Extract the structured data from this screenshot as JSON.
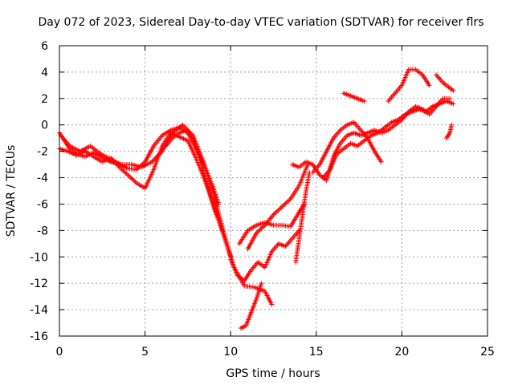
{
  "chart_data": {
    "type": "scatter",
    "title": "Day 072 of 2023, Sidereal Day-to-day VTEC variation (SDTVAR) for receiver flrs",
    "xlabel": "GPS time / hours",
    "ylabel": "SDTVAR / TECUs",
    "xlim": [
      0,
      25
    ],
    "ylim": [
      -16,
      6
    ],
    "xticks": [
      "0",
      "5",
      "10",
      "15",
      "20",
      "25"
    ],
    "yticks": [
      "-16",
      "-14",
      "-12",
      "-10",
      "-8",
      "-6",
      "-4",
      "-2",
      "0",
      "2",
      "4",
      "6"
    ],
    "grid": true,
    "marker": "+",
    "color": "#ff0000",
    "series": [
      {
        "x": [
          0.0,
          0.3,
          0.6,
          1.0,
          1.5,
          2.0,
          2.5,
          3.0,
          3.5,
          4.0,
          4.5,
          5.0,
          5.5,
          6.0,
          6.5,
          7.0,
          7.5,
          8.0,
          8.5,
          9.0,
          9.3
        ],
        "y": [
          -0.6,
          -1.2,
          -1.8,
          -2.2,
          -2.4,
          -2.1,
          -2.5,
          -2.8,
          -3.0,
          -3.3,
          -3.4,
          -2.8,
          -1.6,
          -0.8,
          -0.4,
          -0.2,
          -0.6,
          -1.8,
          -3.2,
          -4.8,
          -6.0
        ]
      },
      {
        "x": [
          0.0,
          0.5,
          1.0,
          1.5,
          2.0,
          2.5,
          3.0,
          3.5,
          4.0,
          4.5,
          5.0,
          5.5,
          6.0,
          6.5,
          7.0,
          7.5,
          8.0,
          8.5,
          9.0,
          9.5
        ],
        "y": [
          -1.8,
          -2.0,
          -2.3,
          -2.0,
          -2.4,
          -2.8,
          -2.5,
          -3.2,
          -3.8,
          -4.4,
          -4.8,
          -3.4,
          -1.6,
          -0.6,
          -0.9,
          -1.2,
          -2.6,
          -4.2,
          -6.0,
          -8.0
        ]
      },
      {
        "x": [
          0.2,
          0.6,
          1.2,
          1.8,
          2.4,
          3.0,
          3.6,
          4.2,
          4.8,
          5.4,
          6.0,
          6.6,
          7.2,
          7.8,
          8.4,
          9.0,
          9.6,
          10.2,
          10.8,
          11.4,
          12.0,
          12.4
        ],
        "y": [
          -1.0,
          -1.6,
          -2.0,
          -1.6,
          -2.2,
          -2.6,
          -3.0,
          -3.0,
          -3.2,
          -2.8,
          -2.0,
          -0.6,
          0.0,
          -0.8,
          -2.8,
          -5.2,
          -8.2,
          -10.8,
          -12.2,
          -12.3,
          -12.6,
          -13.6
        ]
      },
      {
        "x": [
          6.2,
          6.6,
          7.0,
          7.4,
          7.8,
          8.2,
          8.6,
          9.0,
          9.4,
          9.8,
          10.0
        ],
        "y": [
          -1.6,
          -1.0,
          -0.6,
          -0.4,
          -1.0,
          -2.6,
          -4.4,
          -6.2,
          -7.6,
          -9.2,
          -10.0
        ]
      },
      {
        "x": [
          10.0,
          10.4,
          10.8,
          11.2,
          11.6,
          12.0,
          12.4,
          12.8,
          13.2,
          13.6,
          14.0
        ],
        "y": [
          -10.2,
          -11.4,
          -11.8,
          -11.0,
          -10.4,
          -10.8,
          -9.6,
          -9.0,
          -9.2,
          -8.6,
          -8.0
        ]
      },
      {
        "x": [
          10.6,
          10.9,
          11.2,
          11.5,
          11.8
        ],
        "y": [
          -15.4,
          -15.2,
          -14.2,
          -13.2,
          -12.0
        ]
      },
      {
        "x": [
          10.5,
          11.0,
          11.5,
          12.0,
          12.5,
          13.0,
          13.5,
          14.0,
          14.3
        ],
        "y": [
          -9.0,
          -8.0,
          -7.6,
          -7.4,
          -7.6,
          -7.6,
          -7.7,
          -6.6,
          -6.0
        ]
      },
      {
        "x": [
          11.0,
          11.5,
          12.0,
          12.5,
          13.0,
          13.5,
          14.0,
          14.5
        ],
        "y": [
          -9.4,
          -8.2,
          -7.6,
          -6.8,
          -6.2,
          -5.6,
          -4.6,
          -3.0
        ]
      },
      {
        "x": [
          13.8,
          14.0,
          14.2,
          14.4,
          14.6
        ],
        "y": [
          -10.4,
          -8.6,
          -6.8,
          -5.0,
          -3.6
        ]
      },
      {
        "x": [
          13.6,
          14.0,
          14.4,
          14.8,
          15.2,
          15.6,
          16.0,
          16.4,
          16.8,
          17.2,
          17.6,
          18.0,
          18.4,
          18.8,
          19.2,
          19.6,
          20.0,
          20.4,
          20.8,
          21.2,
          21.6,
          22.0,
          22.4,
          22.8
        ],
        "y": [
          -3.0,
          -3.2,
          -2.8,
          -3.0,
          -3.8,
          -4.2,
          -2.4,
          -1.4,
          -0.8,
          -0.6,
          -0.8,
          -0.6,
          -0.4,
          -0.6,
          -0.4,
          0.0,
          0.4,
          1.0,
          1.4,
          1.2,
          0.8,
          1.4,
          2.0,
          2.0
        ]
      },
      {
        "x": [
          14.8,
          15.2,
          15.6,
          16.0,
          16.4,
          16.8,
          17.2,
          17.6,
          18.0,
          18.4,
          18.8
        ],
        "y": [
          -3.6,
          -3.0,
          -2.0,
          -1.0,
          -0.4,
          0.0,
          0.2,
          -0.4,
          -1.0,
          -2.0,
          -2.8
        ]
      },
      {
        "x": [
          15.4,
          15.8,
          16.2,
          16.6,
          17.0,
          17.4,
          17.8,
          18.2,
          18.6,
          19.0,
          19.4,
          19.8,
          20.2,
          20.6,
          21.0,
          21.4,
          21.8,
          22.2,
          22.6,
          23.0
        ],
        "y": [
          -4.0,
          -3.4,
          -2.2,
          -1.8,
          -1.4,
          -1.6,
          -1.2,
          -0.8,
          -0.6,
          -0.2,
          0.2,
          0.4,
          0.8,
          1.0,
          1.2,
          1.0,
          1.4,
          1.6,
          1.8,
          1.6
        ]
      },
      {
        "x": [
          16.6,
          17.0,
          17.4,
          17.8
        ],
        "y": [
          2.4,
          2.2,
          2.0,
          1.8
        ]
      },
      {
        "x": [
          19.2,
          19.6,
          20.0,
          20.4,
          20.8,
          21.2,
          21.6
        ],
        "y": [
          1.8,
          2.4,
          3.0,
          4.2,
          4.2,
          3.8,
          3.0
        ]
      },
      {
        "x": [
          22.0,
          22.4,
          22.8,
          23.0
        ],
        "y": [
          3.8,
          3.2,
          2.8,
          2.6
        ]
      },
      {
        "x": [
          22.6,
          22.8,
          22.9
        ],
        "y": [
          -1.0,
          -0.6,
          0.0
        ]
      }
    ]
  }
}
